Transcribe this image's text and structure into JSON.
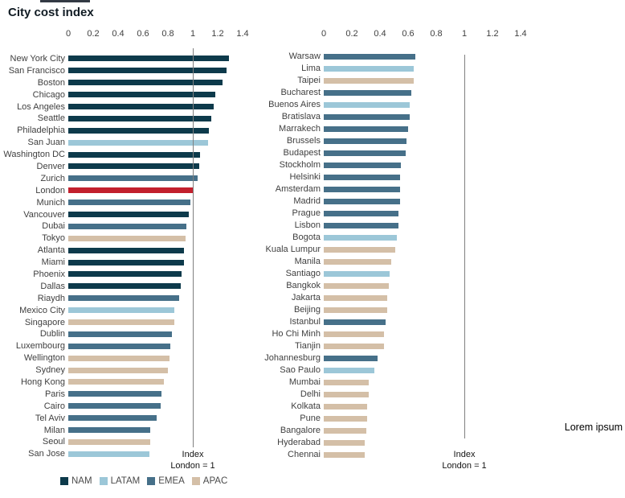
{
  "title": "City cost index",
  "watermark": "Lorem ipsum",
  "colors": {
    "nam": "#0d3a4b",
    "latam": "#9cc7d8",
    "emea": "#467089",
    "apac": "#d4bfa7",
    "highlight_red": "#c2202d",
    "reference_line": "#808080"
  },
  "legend": {
    "items": [
      {
        "label": "NAM",
        "color_key": "nam"
      },
      {
        "label": "LATAM",
        "color_key": "latam"
      },
      {
        "label": "EMEA",
        "color_key": "emea"
      },
      {
        "label": "APAC",
        "color_key": "apac"
      }
    ]
  },
  "chart_data": [
    {
      "type": "bar",
      "orientation": "horizontal",
      "panel": "left",
      "xlim": [
        0,
        1.4
      ],
      "x_ticks": [
        "0",
        "0.2",
        "0.4",
        "0.6",
        "0.8",
        "1",
        "1.2",
        "1.4"
      ],
      "grid": false,
      "reference_line": {
        "value": 1,
        "label_lines": [
          "Index",
          "London = 1"
        ]
      },
      "bars": [
        {
          "city": "New York City",
          "region": "NAM",
          "value": 1.29,
          "highlight": false
        },
        {
          "city": "San Francisco",
          "region": "NAM",
          "value": 1.27,
          "highlight": false
        },
        {
          "city": "Boston",
          "region": "NAM",
          "value": 1.24,
          "highlight": false
        },
        {
          "city": "Chicago",
          "region": "NAM",
          "value": 1.18,
          "highlight": false
        },
        {
          "city": "Los Angeles",
          "region": "NAM",
          "value": 1.17,
          "highlight": false
        },
        {
          "city": "Seattle",
          "region": "NAM",
          "value": 1.15,
          "highlight": false
        },
        {
          "city": "Philadelphia",
          "region": "NAM",
          "value": 1.13,
          "highlight": false
        },
        {
          "city": "San Juan",
          "region": "LATAM",
          "value": 1.12,
          "highlight": false
        },
        {
          "city": "Washington DC",
          "region": "NAM",
          "value": 1.06,
          "highlight": false
        },
        {
          "city": "Denver",
          "region": "NAM",
          "value": 1.05,
          "highlight": false
        },
        {
          "city": "Zurich",
          "region": "EMEA",
          "value": 1.04,
          "highlight": false
        },
        {
          "city": "London",
          "region": "EMEA",
          "value": 1.0,
          "highlight": true
        },
        {
          "city": "Munich",
          "region": "EMEA",
          "value": 0.98,
          "highlight": false
        },
        {
          "city": "Vancouver",
          "region": "NAM",
          "value": 0.97,
          "highlight": false
        },
        {
          "city": "Dubai",
          "region": "EMEA",
          "value": 0.95,
          "highlight": false
        },
        {
          "city": "Tokyo",
          "region": "APAC",
          "value": 0.94,
          "highlight": false
        },
        {
          "city": "Atlanta",
          "region": "NAM",
          "value": 0.93,
          "highlight": false
        },
        {
          "city": "Miami",
          "region": "NAM",
          "value": 0.93,
          "highlight": false
        },
        {
          "city": "Phoenix",
          "region": "NAM",
          "value": 0.91,
          "highlight": false
        },
        {
          "city": "Dallas",
          "region": "NAM",
          "value": 0.9,
          "highlight": false
        },
        {
          "city": "Riaydh",
          "region": "EMEA",
          "value": 0.89,
          "highlight": false
        },
        {
          "city": "Mexico City",
          "region": "LATAM",
          "value": 0.85,
          "highlight": false
        },
        {
          "city": "Singapore",
          "region": "APAC",
          "value": 0.85,
          "highlight": false
        },
        {
          "city": "Dublin",
          "region": "EMEA",
          "value": 0.83,
          "highlight": false
        },
        {
          "city": "Luxembourg",
          "region": "EMEA",
          "value": 0.82,
          "highlight": false
        },
        {
          "city": "Wellington",
          "region": "APAC",
          "value": 0.81,
          "highlight": false
        },
        {
          "city": "Sydney",
          "region": "APAC",
          "value": 0.8,
          "highlight": false
        },
        {
          "city": "Hong Kong",
          "region": "APAC",
          "value": 0.77,
          "highlight": false
        },
        {
          "city": "Paris",
          "region": "EMEA",
          "value": 0.75,
          "highlight": false
        },
        {
          "city": "Cairo",
          "region": "EMEA",
          "value": 0.74,
          "highlight": false
        },
        {
          "city": "Tel Aviv",
          "region": "EMEA",
          "value": 0.71,
          "highlight": false
        },
        {
          "city": "Milan",
          "region": "EMEA",
          "value": 0.66,
          "highlight": false
        },
        {
          "city": "Seoul",
          "region": "APAC",
          "value": 0.66,
          "highlight": false
        },
        {
          "city": "San Jose",
          "region": "LATAM",
          "value": 0.65,
          "highlight": false
        }
      ]
    },
    {
      "type": "bar",
      "orientation": "horizontal",
      "panel": "right",
      "xlim": [
        0,
        1.4
      ],
      "x_ticks": [
        "0",
        "0.2",
        "0.4",
        "0.6",
        "0.8",
        "1",
        "1.2",
        "1.4"
      ],
      "grid": false,
      "reference_line": {
        "value": 1,
        "label_lines": [
          "Index",
          "London = 1"
        ]
      },
      "bars": [
        {
          "city": "Warsaw",
          "region": "EMEA",
          "value": 0.65,
          "highlight": false
        },
        {
          "city": "Lima",
          "region": "LATAM",
          "value": 0.64,
          "highlight": false
        },
        {
          "city": "Taipei",
          "region": "APAC",
          "value": 0.64,
          "highlight": false
        },
        {
          "city": "Bucharest",
          "region": "EMEA",
          "value": 0.62,
          "highlight": false
        },
        {
          "city": "Buenos Aires",
          "region": "LATAM",
          "value": 0.61,
          "highlight": false
        },
        {
          "city": "Bratislava",
          "region": "EMEA",
          "value": 0.61,
          "highlight": false
        },
        {
          "city": "Marrakech",
          "region": "EMEA",
          "value": 0.6,
          "highlight": false
        },
        {
          "city": "Brussels",
          "region": "EMEA",
          "value": 0.59,
          "highlight": false
        },
        {
          "city": "Budapest",
          "region": "EMEA",
          "value": 0.58,
          "highlight": false
        },
        {
          "city": "Stockholm",
          "region": "EMEA",
          "value": 0.55,
          "highlight": false
        },
        {
          "city": "Helsinki",
          "region": "EMEA",
          "value": 0.54,
          "highlight": false
        },
        {
          "city": "Amsterdam",
          "region": "EMEA",
          "value": 0.54,
          "highlight": false
        },
        {
          "city": "Madrid",
          "region": "EMEA",
          "value": 0.54,
          "highlight": false
        },
        {
          "city": "Prague",
          "region": "EMEA",
          "value": 0.53,
          "highlight": false
        },
        {
          "city": "Lisbon",
          "region": "EMEA",
          "value": 0.53,
          "highlight": false
        },
        {
          "city": "Bogota",
          "region": "LATAM",
          "value": 0.52,
          "highlight": false
        },
        {
          "city": "Kuala Lumpur",
          "region": "APAC",
          "value": 0.51,
          "highlight": false
        },
        {
          "city": "Manila",
          "region": "APAC",
          "value": 0.48,
          "highlight": false
        },
        {
          "city": "Santiago",
          "region": "LATAM",
          "value": 0.47,
          "highlight": false
        },
        {
          "city": "Bangkok",
          "region": "APAC",
          "value": 0.46,
          "highlight": false
        },
        {
          "city": "Jakarta",
          "region": "APAC",
          "value": 0.45,
          "highlight": false
        },
        {
          "city": "Beijing",
          "region": "APAC",
          "value": 0.45,
          "highlight": false
        },
        {
          "city": "Istanbul",
          "region": "EMEA",
          "value": 0.44,
          "highlight": false
        },
        {
          "city": "Ho Chi Minh",
          "region": "APAC",
          "value": 0.43,
          "highlight": false
        },
        {
          "city": "Tianjin",
          "region": "APAC",
          "value": 0.43,
          "highlight": false
        },
        {
          "city": "Johannesburg",
          "region": "EMEA",
          "value": 0.38,
          "highlight": false
        },
        {
          "city": "Sao Paulo",
          "region": "LATAM",
          "value": 0.36,
          "highlight": false
        },
        {
          "city": "Mumbai",
          "region": "APAC",
          "value": 0.32,
          "highlight": false
        },
        {
          "city": "Delhi",
          "region": "APAC",
          "value": 0.32,
          "highlight": false
        },
        {
          "city": "Kolkata",
          "region": "APAC",
          "value": 0.31,
          "highlight": false
        },
        {
          "city": "Pune",
          "region": "APAC",
          "value": 0.31,
          "highlight": false
        },
        {
          "city": "Bangalore",
          "region": "APAC",
          "value": 0.3,
          "highlight": false
        },
        {
          "city": "Hyderabad",
          "region": "APAC",
          "value": 0.29,
          "highlight": false
        },
        {
          "city": "Chennai",
          "region": "APAC",
          "value": 0.29,
          "highlight": false
        }
      ]
    }
  ]
}
